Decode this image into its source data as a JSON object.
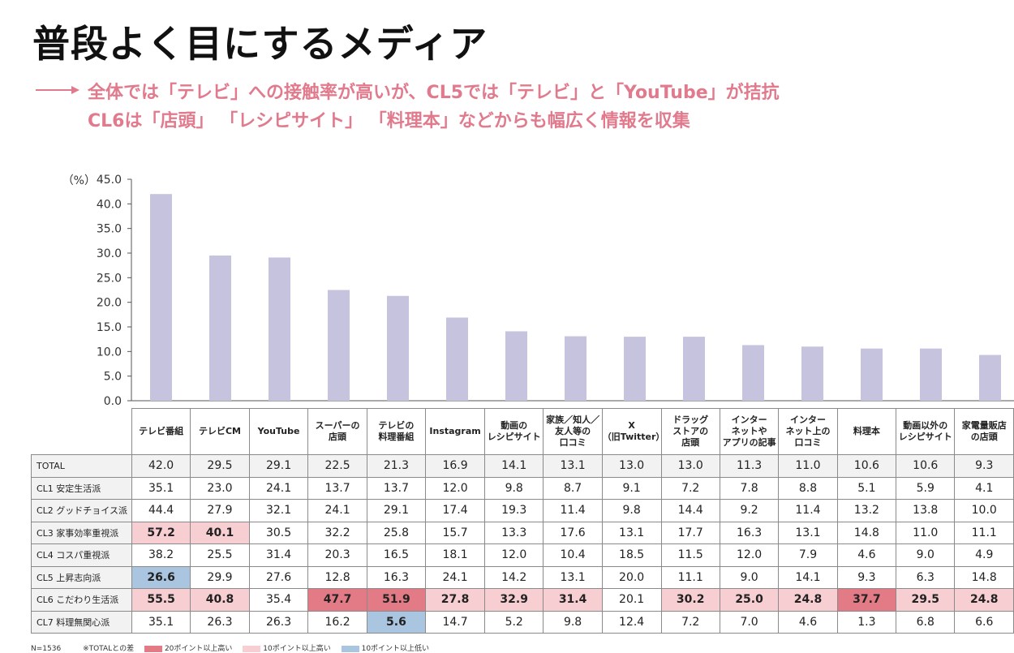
{
  "page": {
    "title": "普段よく目にするメディア",
    "subtitle_line1": "全体では「テレビ」への接触率が高いが、CL5では「テレビ」と「YouTube」が拮抗",
    "subtitle_line2": "CL6は「店頭」 「レシピサイト」 「料理本」などからも幅広く情報を収集",
    "footnote_n": "N=1536",
    "footnote_note": "※TOTALとの差",
    "legend_hi20": "20ポイント以上高い",
    "legend_hi10": "10ポイント以上高い",
    "legend_lo10": "10ポイント以上低い"
  },
  "colors": {
    "bar": "#c5c3de",
    "accent": "#e07a8c",
    "hi20": "#e37b86",
    "hi10": "#f7cfd2",
    "lo10": "#a9c5df"
  },
  "chart_data": {
    "type": "bar",
    "ylabel": "（%）",
    "ylim": [
      0,
      45
    ],
    "yticks": [
      "0.0",
      "5.0",
      "10.0",
      "15.0",
      "20.0",
      "25.0",
      "30.0",
      "35.0",
      "40.0",
      "45.0"
    ],
    "categories": [
      "テレビ番組",
      "テレビCM",
      "YouTube",
      "スーパーの店頭",
      "テレビの料理番組",
      "Instagram",
      "動画のレシピサイト",
      "家族／知人／友人等の口コミ",
      "X（旧Twitter）",
      "ドラッグストアの店頭",
      "インターネットやアプリの記事",
      "インターネット上の口コミ",
      "料理本",
      "動画以外のレシピサイト",
      "家電量販店の店頭"
    ],
    "values": [
      42.0,
      29.5,
      29.1,
      22.5,
      21.3,
      16.9,
      14.1,
      13.1,
      13.0,
      13.0,
      11.3,
      11.0,
      10.6,
      10.6,
      9.3
    ]
  },
  "table": {
    "headers": [
      [
        "テレビ番組"
      ],
      [
        "テレビCM"
      ],
      [
        "YouTube"
      ],
      [
        "スーパーの",
        "店頭"
      ],
      [
        "テレビの",
        "料理番組"
      ],
      [
        "Instagram"
      ],
      [
        "動画の",
        "レシピサイト"
      ],
      [
        "家族／知人／",
        "友人等の",
        "口コミ"
      ],
      [
        "X",
        "（旧Twitter）"
      ],
      [
        "ドラッグ",
        "ストアの",
        "店頭"
      ],
      [
        "インター",
        "ネットや",
        "アプリの記事"
      ],
      [
        "インター",
        "ネット上の",
        "口コミ"
      ],
      [
        "料理本"
      ],
      [
        "動画以外の",
        "レシピサイト"
      ],
      [
        "家電量販店",
        "の店頭"
      ]
    ],
    "rows": [
      {
        "label": "TOTAL",
        "values": [
          "42.0",
          "29.5",
          "29.1",
          "22.5",
          "21.3",
          "16.9",
          "14.1",
          "13.1",
          "13.0",
          "13.0",
          "11.3",
          "11.0",
          "10.6",
          "10.6",
          "9.3"
        ],
        "marks": [
          "",
          "",
          "",
          "",
          "",
          "",
          "",
          "",
          "",
          "",
          "",
          "",
          "",
          "",
          ""
        ]
      },
      {
        "label": "CL1 安定生活派",
        "values": [
          "35.1",
          "23.0",
          "24.1",
          "13.7",
          "13.7",
          "12.0",
          "9.8",
          "8.7",
          "9.1",
          "7.2",
          "7.8",
          "8.8",
          "5.1",
          "5.9",
          "4.1"
        ],
        "marks": [
          "",
          "",
          "",
          "",
          "",
          "",
          "",
          "",
          "",
          "",
          "",
          "",
          "",
          "",
          ""
        ]
      },
      {
        "label": "CL2 グッドチョイス派",
        "values": [
          "44.4",
          "27.9",
          "32.1",
          "24.1",
          "29.1",
          "17.4",
          "19.3",
          "11.4",
          "9.8",
          "14.4",
          "9.2",
          "11.4",
          "13.2",
          "13.8",
          "10.0"
        ],
        "marks": [
          "",
          "",
          "",
          "",
          "",
          "",
          "",
          "",
          "",
          "",
          "",
          "",
          "",
          "",
          ""
        ]
      },
      {
        "label": "CL3 家事効率重視派",
        "values": [
          "57.2",
          "40.1",
          "30.5",
          "32.2",
          "25.8",
          "15.7",
          "13.3",
          "17.6",
          "13.1",
          "17.7",
          "16.3",
          "13.1",
          "14.8",
          "11.0",
          "11.1"
        ],
        "marks": [
          "hi10",
          "hi10",
          "",
          "",
          "",
          "",
          "",
          "",
          "",
          "",
          "",
          "",
          "",
          "",
          ""
        ]
      },
      {
        "label": "CL4 コスパ重視派",
        "values": [
          "38.2",
          "25.5",
          "31.4",
          "20.3",
          "16.5",
          "18.1",
          "12.0",
          "10.4",
          "18.5",
          "11.5",
          "12.0",
          "7.9",
          "4.6",
          "9.0",
          "4.9"
        ],
        "marks": [
          "",
          "",
          "",
          "",
          "",
          "",
          "",
          "",
          "",
          "",
          "",
          "",
          "",
          "",
          ""
        ]
      },
      {
        "label": "CL5 上昇志向派",
        "values": [
          "26.6",
          "29.9",
          "27.6",
          "12.8",
          "16.3",
          "24.1",
          "14.2",
          "13.1",
          "20.0",
          "11.1",
          "9.0",
          "14.1",
          "9.3",
          "6.3",
          "14.8"
        ],
        "marks": [
          "lo10",
          "",
          "",
          "",
          "",
          "",
          "",
          "",
          "",
          "",
          "",
          "",
          "",
          "",
          ""
        ]
      },
      {
        "label": "CL6 こだわり生活派",
        "values": [
          "55.5",
          "40.8",
          "35.4",
          "47.7",
          "51.9",
          "27.8",
          "32.9",
          "31.4",
          "20.1",
          "30.2",
          "25.0",
          "24.8",
          "37.7",
          "29.5",
          "24.8"
        ],
        "marks": [
          "hi10",
          "hi10",
          "",
          "hi20",
          "hi20",
          "hi10",
          "hi10",
          "hi10",
          "",
          "hi10",
          "hi10",
          "hi10",
          "hi20",
          "hi10",
          "hi10"
        ]
      },
      {
        "label": "CL7 料理無関心派",
        "values": [
          "35.1",
          "26.3",
          "26.3",
          "16.2",
          "5.6",
          "14.7",
          "5.2",
          "9.8",
          "12.4",
          "7.2",
          "7.0",
          "4.6",
          "1.3",
          "6.8",
          "6.6"
        ],
        "marks": [
          "",
          "",
          "",
          "",
          "lo10",
          "",
          "",
          "",
          "",
          "",
          "",
          "",
          "",
          "",
          ""
        ]
      }
    ]
  }
}
